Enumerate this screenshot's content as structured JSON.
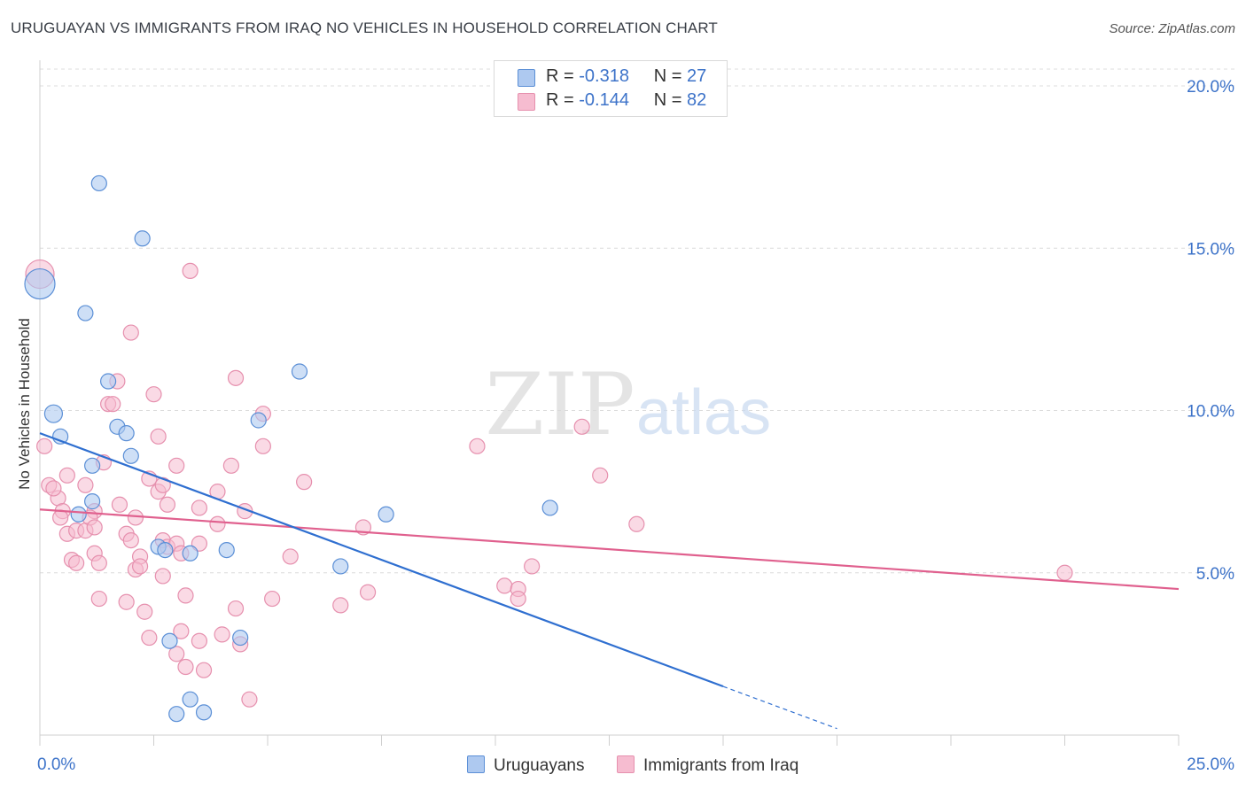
{
  "title": "URUGUAYAN VS IMMIGRANTS FROM IRAQ NO VEHICLES IN HOUSEHOLD CORRELATION CHART",
  "source": "Source: ZipAtlas.com",
  "watermark": {
    "zip": "ZIP",
    "atlas": "atlas"
  },
  "legend": {
    "r_label": "R =",
    "n_label": "N =",
    "series1": {
      "r": "-0.318",
      "n": "27"
    },
    "series2": {
      "r": "-0.144",
      "n": "82"
    }
  },
  "colors": {
    "uruguayans_fill": "#aec9f0",
    "uruguayans_stroke": "#5b8fd6",
    "uruguayans_line": "#2f6fd0",
    "iraq_fill": "#f6bcd0",
    "iraq_stroke": "#e690ae",
    "iraq_line": "#e0608e",
    "axis_text": "#3d73c9",
    "grid": "#dcdcdc"
  },
  "chart_data": {
    "type": "scatter",
    "title": "URUGUAYAN VS IMMIGRANTS FROM IRAQ NO VEHICLES IN HOUSEHOLD CORRELATION CHART",
    "xlabel": "",
    "ylabel": "No Vehicles in Household",
    "xlim": [
      0,
      25
    ],
    "ylim": [
      0,
      20.5
    ],
    "x_tick_labels": [
      "0.0%",
      "25.0%"
    ],
    "y_ticks": [
      5,
      10,
      15,
      20
    ],
    "y_tick_labels": [
      "5.0%",
      "10.0%",
      "15.0%",
      "20.0%"
    ],
    "series": [
      {
        "name": "Uruguayans",
        "r": -0.318,
        "n": 27,
        "points": [
          [
            0.0,
            13.9
          ],
          [
            0.3,
            9.9
          ],
          [
            0.45,
            9.2
          ],
          [
            1.3,
            17.0
          ],
          [
            1.0,
            13.0
          ],
          [
            1.5,
            10.9
          ],
          [
            2.25,
            15.3
          ],
          [
            1.7,
            9.5
          ],
          [
            1.9,
            9.3
          ],
          [
            2.0,
            8.6
          ],
          [
            1.15,
            8.3
          ],
          [
            1.15,
            7.2
          ],
          [
            0.85,
            6.8
          ],
          [
            4.8,
            9.7
          ],
          [
            5.7,
            11.2
          ],
          [
            7.6,
            6.8
          ],
          [
            11.2,
            7.0
          ],
          [
            2.6,
            5.8
          ],
          [
            2.75,
            5.7
          ],
          [
            3.3,
            5.6
          ],
          [
            4.1,
            5.7
          ],
          [
            6.6,
            5.2
          ],
          [
            2.85,
            2.9
          ],
          [
            4.4,
            3.0
          ],
          [
            3.3,
            1.1
          ],
          [
            3.6,
            0.7
          ],
          [
            3.0,
            0.65
          ]
        ]
      },
      {
        "name": "Immigrants from Iraq",
        "r": -0.144,
        "n": 82,
        "points": [
          [
            0.0,
            14.2
          ],
          [
            0.1,
            8.9
          ],
          [
            0.2,
            7.7
          ],
          [
            0.4,
            7.3
          ],
          [
            0.5,
            6.9
          ],
          [
            0.45,
            6.7
          ],
          [
            0.6,
            8.0
          ],
          [
            0.6,
            6.2
          ],
          [
            0.8,
            6.3
          ],
          [
            0.7,
            5.4
          ],
          [
            0.8,
            5.3
          ],
          [
            1.0,
            6.3
          ],
          [
            1.2,
            6.9
          ],
          [
            1.1,
            6.7
          ],
          [
            1.2,
            6.4
          ],
          [
            1.2,
            5.6
          ],
          [
            1.3,
            5.3
          ],
          [
            1.3,
            4.2
          ],
          [
            1.4,
            8.4
          ],
          [
            1.5,
            10.2
          ],
          [
            1.7,
            10.9
          ],
          [
            2.0,
            12.4
          ],
          [
            1.75,
            7.1
          ],
          [
            1.9,
            6.2
          ],
          [
            2.1,
            6.7
          ],
          [
            2.2,
            5.5
          ],
          [
            2.1,
            5.1
          ],
          [
            2.2,
            5.2
          ],
          [
            1.9,
            4.1
          ],
          [
            2.3,
            3.8
          ],
          [
            2.4,
            3.0
          ],
          [
            2.4,
            7.9
          ],
          [
            2.5,
            10.5
          ],
          [
            2.6,
            9.2
          ],
          [
            2.6,
            7.5
          ],
          [
            2.7,
            7.7
          ],
          [
            2.8,
            7.1
          ],
          [
            2.7,
            6.0
          ],
          [
            2.8,
            5.8
          ],
          [
            2.7,
            4.9
          ],
          [
            3.0,
            8.3
          ],
          [
            3.0,
            5.9
          ],
          [
            3.1,
            5.6
          ],
          [
            3.2,
            4.3
          ],
          [
            3.1,
            3.2
          ],
          [
            3.0,
            2.5
          ],
          [
            3.2,
            2.1
          ],
          [
            3.3,
            14.3
          ],
          [
            3.5,
            7.0
          ],
          [
            3.5,
            5.9
          ],
          [
            3.5,
            2.9
          ],
          [
            3.6,
            2.0
          ],
          [
            3.9,
            7.5
          ],
          [
            3.9,
            6.5
          ],
          [
            4.0,
            3.1
          ],
          [
            4.2,
            8.3
          ],
          [
            4.3,
            11.0
          ],
          [
            4.3,
            3.9
          ],
          [
            4.4,
            2.8
          ],
          [
            4.5,
            6.9
          ],
          [
            4.6,
            1.1
          ],
          [
            4.9,
            9.9
          ],
          [
            4.9,
            8.9
          ],
          [
            5.1,
            4.2
          ],
          [
            5.5,
            5.5
          ],
          [
            5.8,
            7.8
          ],
          [
            6.6,
            4.0
          ],
          [
            7.1,
            6.4
          ],
          [
            7.2,
            4.4
          ],
          [
            9.6,
            8.9
          ],
          [
            10.2,
            4.6
          ],
          [
            10.5,
            4.5
          ],
          [
            10.5,
            4.2
          ],
          [
            10.8,
            5.2
          ],
          [
            11.9,
            9.5
          ],
          [
            12.3,
            8.0
          ],
          [
            13.1,
            6.5
          ],
          [
            22.5,
            5.0
          ],
          [
            2.0,
            6.0
          ],
          [
            1.0,
            7.7
          ],
          [
            0.3,
            7.6
          ],
          [
            1.6,
            10.2
          ]
        ]
      }
    ],
    "trend_lines": [
      {
        "series": "Uruguayans",
        "x0": 0.0,
        "y0": 9.3,
        "x1": 15.0,
        "y1": 1.5,
        "dashed_to_x": 17.5,
        "dashed_to_y": 0.2
      },
      {
        "series": "Immigrants from Iraq",
        "x0": 0.0,
        "y0": 6.95,
        "x1": 25.0,
        "y1": 4.5
      }
    ],
    "bottom_legend": [
      "Uruguayans",
      "Immigrants from Iraq"
    ]
  }
}
